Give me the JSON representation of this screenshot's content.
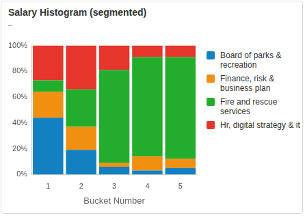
{
  "chart_data": {
    "type": "bar",
    "title": "Salary Histogram (segmented)",
    "subtitle": "–",
    "x_label": "Bucket Number",
    "categories": [
      "1",
      "2",
      "3",
      "4",
      "5"
    ],
    "stacked": true,
    "grid": false,
    "legend": "right",
    "ylim": [
      0,
      100
    ],
    "yticks": [
      {
        "value": 0,
        "label": "0%"
      },
      {
        "value": 20,
        "label": "20%"
      },
      {
        "value": 40,
        "label": "40%"
      },
      {
        "value": 60,
        "label": "60%"
      },
      {
        "value": 80,
        "label": "80%"
      },
      {
        "value": 100,
        "label": "100%"
      }
    ],
    "series": [
      {
        "name": "Board of parks & recreation",
        "color": "#1380c2",
        "values": [
          44,
          19,
          6,
          3,
          5
        ]
      },
      {
        "name": "Finance, risk & business plan",
        "color": "#f08f10",
        "values": [
          20,
          18,
          3,
          11,
          7
        ]
      },
      {
        "name": "Fire and rescue services",
        "color": "#22ad2c",
        "values": [
          9,
          29,
          72,
          77,
          79
        ]
      },
      {
        "name": "Hr, digital strategy & it",
        "color": "#e6352b",
        "values": [
          27,
          34,
          19,
          9,
          9
        ]
      }
    ]
  }
}
